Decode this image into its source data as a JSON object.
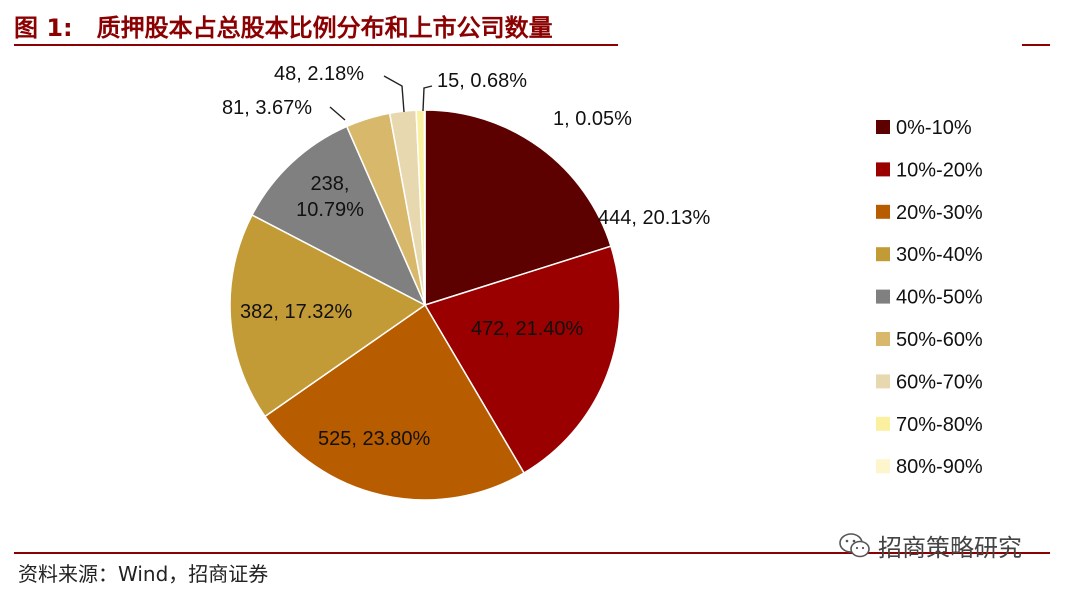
{
  "figure": {
    "number": "图 1:",
    "title": "质押股本占总股本比例分布和上市公司数量",
    "source": "资料来源：Wind，招商证券",
    "watermark": "招商策略研究"
  },
  "chart_data": {
    "type": "pie",
    "title": "质押股本占总股本比例分布和上市公司数量",
    "categories": [
      "0%-10%",
      "10%-20%",
      "20%-30%",
      "30%-40%",
      "40%-50%",
      "50%-60%",
      "60%-70%",
      "70%-80%",
      "80%-90%"
    ],
    "values": [
      444,
      472,
      525,
      382,
      238,
      81,
      48,
      15,
      1
    ],
    "percents": [
      "20.13%",
      "21.40%",
      "23.80%",
      "17.32%",
      "10.79%",
      "3.67%",
      "2.18%",
      "0.68%",
      "0.05%"
    ],
    "data_labels": [
      "444, 20.13%",
      "472, 21.40%",
      "525, 23.80%",
      "382, 17.32%",
      "238, 10.79%",
      "81, 3.67%",
      "48, 2.18%",
      "15, 0.68%",
      "1, 0.05%"
    ],
    "colors": [
      "#5c0000",
      "#9a0000",
      "#b85c00",
      "#c39b36",
      "#808080",
      "#d8b86a",
      "#e8d8b0",
      "#faf0a0",
      "#fdf5cc"
    ],
    "legend_position": "right",
    "start_angle": "12 o'clock",
    "direction": "clockwise"
  }
}
